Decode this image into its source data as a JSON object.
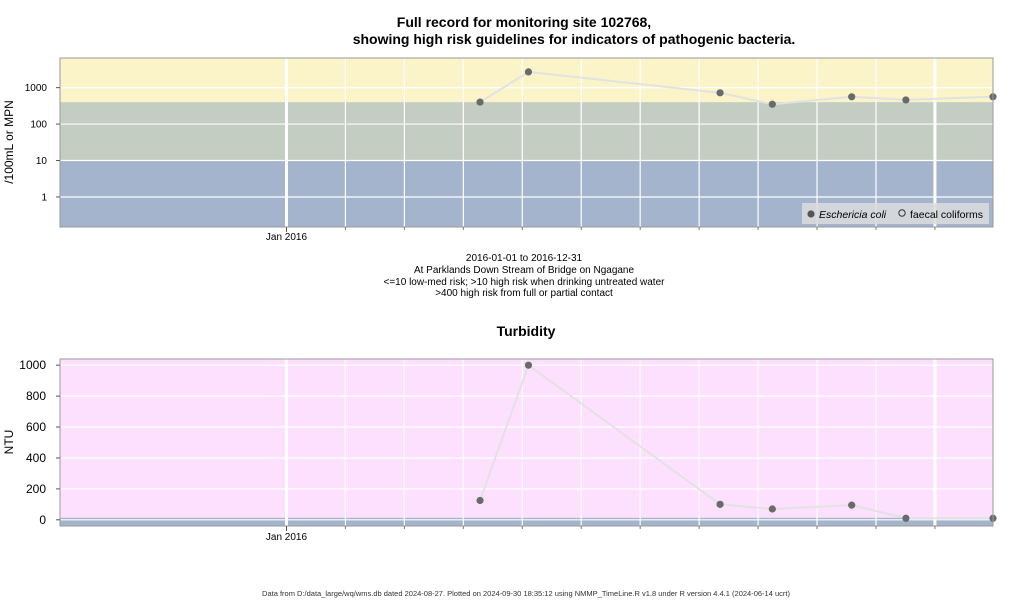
{
  "ecoli": {
    "title_line1": "Full record for monitoring site 102768,",
    "title_line2": "showing high risk guidelines for indicators of pathogenic bacteria.",
    "ylabel": "/100mL or MPN",
    "caption": [
      "2016-01-01 to 2016-12-31",
      "At Parklands Down Stream of Bridge on Ngagane",
      "<=10 low-med risk; >10 high risk when drinking untreated water",
      ">400 high risk from full or partial contact"
    ],
    "legend": {
      "ecoli_label": "Eschericia coli",
      "faecal_label": "faecal coliforms"
    },
    "colors": {
      "high_contact": "#fbf4c8",
      "high_drinking": "#c4cdc1",
      "low_med": "#a3b4cc"
    }
  },
  "turbidity": {
    "title": "Turbidity",
    "ylabel": "NTU",
    "colors": {
      "background": "#fde0fd",
      "baseline": "#a3b4cc"
    }
  },
  "footer": "Data from D:/data_large/wq/wms.db dated 2024-08-27. Plotted on 2024-09-30 18:35:12 using NMMP_TimeLine.R v1.8 under R version 4.4.1 (2024-06-14 ucrt)",
  "chart_data": [
    {
      "type": "scatter",
      "title": "Full record for monitoring site 102768, showing high risk guidelines for indicators of pathogenic bacteria.",
      "ylabel": "/100mL or MPN",
      "yscale": "log",
      "yticks": [
        "1",
        "10",
        "100",
        "1000"
      ],
      "ylim": [
        0.15,
        6500
      ],
      "xlim": [
        "2015-09-06",
        "2016-12-31"
      ],
      "xtick_labels": [
        "Jan 2016"
      ],
      "bands": [
        {
          "from": 400,
          "to": 6500,
          "label": ">400 high risk from full or partial contact"
        },
        {
          "from": 10,
          "to": 400,
          "label": ">10 high risk when drinking untreated water"
        },
        {
          "from": 0.15,
          "to": 10,
          "label": "<=10 low-med risk"
        }
      ],
      "legend_position": "bottom-right",
      "series": [
        {
          "name": "Eschericia coli",
          "x": [
            "2016-04-10",
            "2016-05-05",
            "2016-08-12",
            "2016-09-08",
            "2016-10-19",
            "2016-11-16",
            "2016-12-31"
          ],
          "y": [
            400,
            2700,
            720,
            350,
            560,
            460,
            560
          ]
        },
        {
          "name": "faecal coliforms",
          "x": [],
          "y": []
        }
      ]
    },
    {
      "type": "line",
      "title": "Turbidity",
      "ylabel": "NTU",
      "ylim": [
        -40,
        1040
      ],
      "yticks": [
        0,
        200,
        400,
        600,
        800,
        1000
      ],
      "xlim": [
        "2015-09-06",
        "2016-12-31"
      ],
      "xtick_labels": [
        "Jan 2016"
      ],
      "series": [
        {
          "name": "",
          "x": [
            "2016-04-10",
            "2016-05-05",
            "2016-08-12",
            "2016-09-08",
            "2016-10-19",
            "2016-11-16",
            "2016-12-31"
          ],
          "y": [
            125,
            1000,
            100,
            70,
            95,
            10,
            10
          ]
        }
      ]
    }
  ]
}
